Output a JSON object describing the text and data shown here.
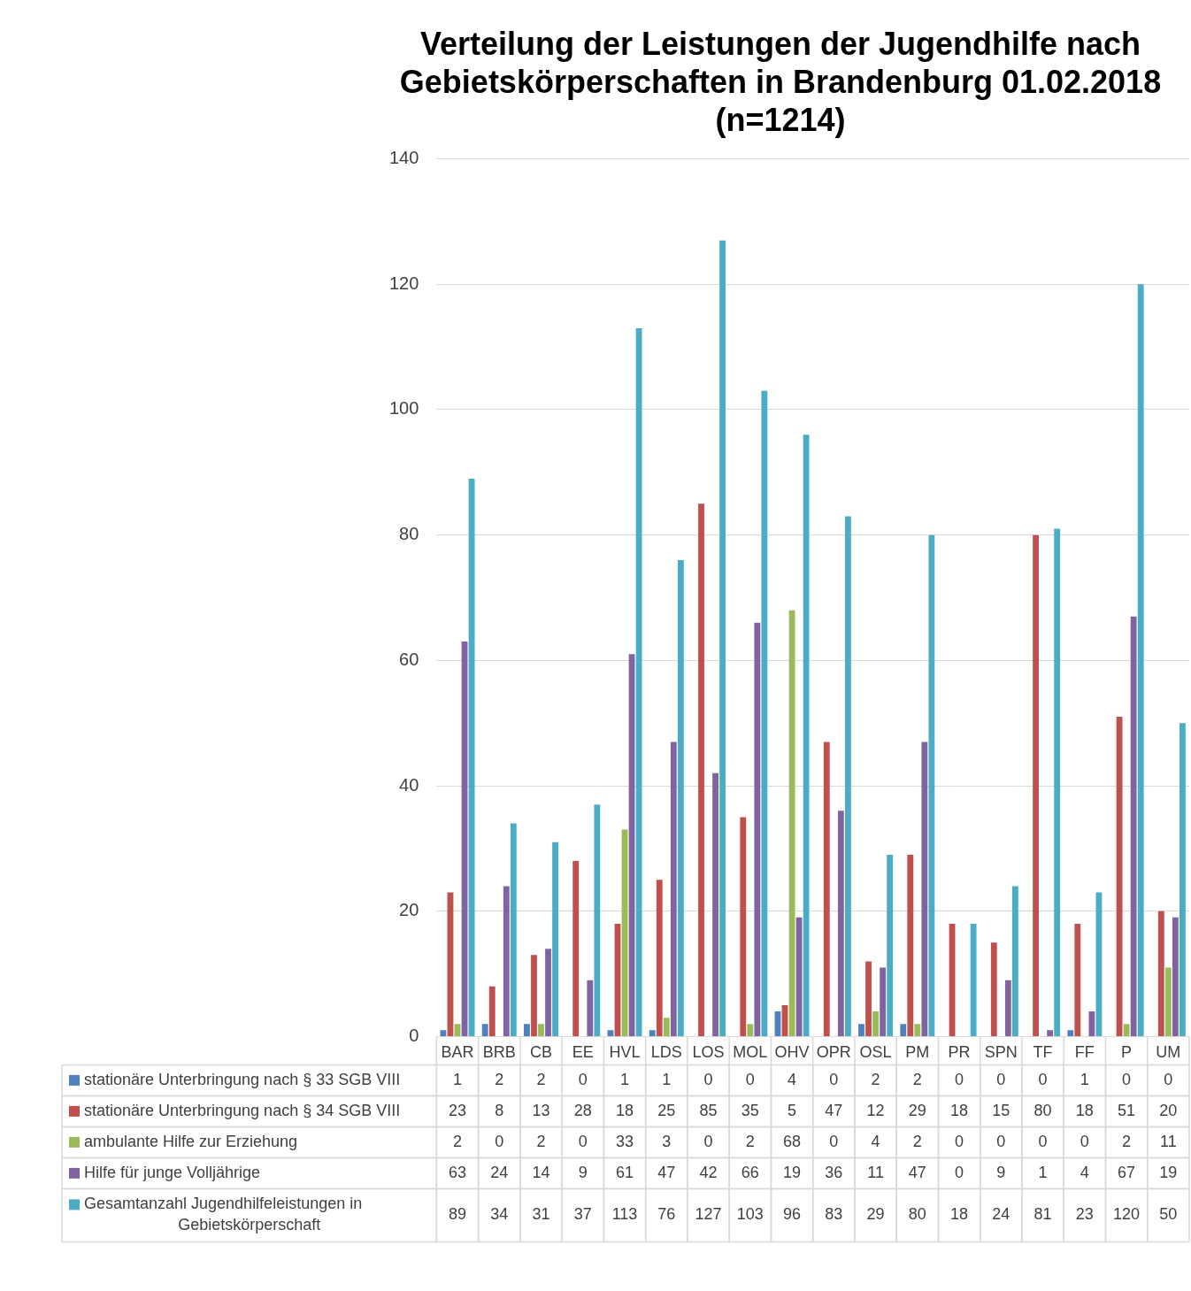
{
  "chart_data": {
    "type": "bar",
    "title": "Verteilung der Leistungen der Jugendhilfe nach Gebietskörperschaften in Brandenburg 01.02.2018 (n=1214)",
    "categories": [
      "BAR",
      "BRB",
      "CB",
      "EE",
      "HVL",
      "LDS",
      "LOS",
      "MOL",
      "OHV",
      "OPR",
      "OSL",
      "PM",
      "PR",
      "SPN",
      "TF",
      "FF",
      "P",
      "UM"
    ],
    "series": [
      {
        "name": "stationäre Unterbringung nach § 33 SGB VIII",
        "color": "#4f81bd",
        "values": [
          1,
          2,
          2,
          0,
          1,
          1,
          0,
          0,
          4,
          0,
          2,
          2,
          0,
          0,
          0,
          1,
          0,
          0
        ]
      },
      {
        "name": "stationäre Unterbringung nach § 34 SGB VIII",
        "color": "#c0504d",
        "values": [
          23,
          8,
          13,
          28,
          18,
          25,
          85,
          35,
          5,
          47,
          12,
          29,
          18,
          15,
          80,
          18,
          51,
          20
        ]
      },
      {
        "name": "ambulante Hilfe zur Erziehung",
        "color": "#9bbb59",
        "values": [
          2,
          0,
          2,
          0,
          33,
          3,
          0,
          2,
          68,
          0,
          4,
          2,
          0,
          0,
          0,
          0,
          2,
          11
        ]
      },
      {
        "name": "Hilfe für junge Volljährige",
        "color": "#8064a2",
        "values": [
          63,
          24,
          14,
          9,
          61,
          47,
          42,
          66,
          19,
          36,
          11,
          47,
          0,
          9,
          1,
          4,
          67,
          19
        ]
      },
      {
        "name": "Gesamtanzahl Jugendhilfeleistungen in Gebietskörperschaft",
        "color": "#4bacc6",
        "values": [
          89,
          34,
          31,
          37,
          113,
          76,
          127,
          103,
          96,
          83,
          29,
          80,
          18,
          24,
          81,
          23,
          120,
          50
        ]
      }
    ],
    "ylim": [
      0,
      140
    ],
    "yticks": [
      0,
      20,
      40,
      60,
      80,
      100,
      120,
      140
    ],
    "grid": "y",
    "legend": "bottom left",
    "data_labels": true
  }
}
